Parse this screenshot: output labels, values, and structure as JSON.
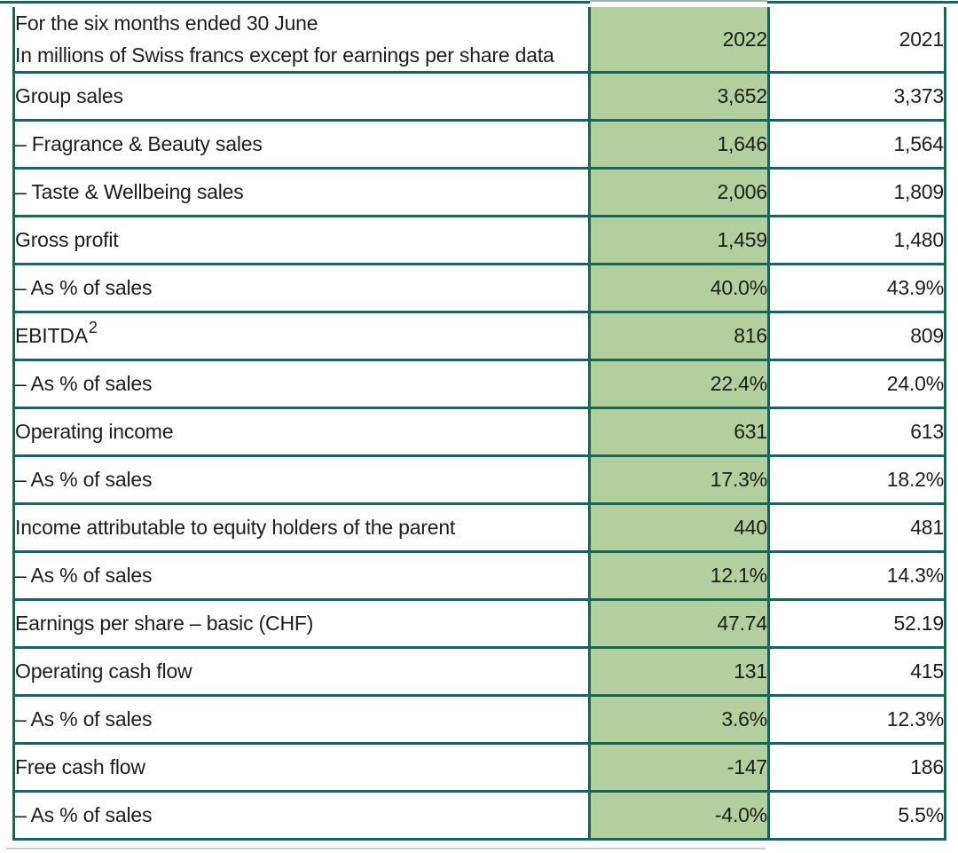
{
  "colors": {
    "grid_border": "#15675a",
    "highlight_column": "#b3cf9e",
    "text": "#1d1d1b",
    "top_rule_light": "#a4b5ad",
    "bottom_rule": "#c9cdca"
  },
  "table": {
    "header": {
      "label_line1": "For the six months ended 30 June",
      "label_line2": "In millions of Swiss francs except for earnings per share data",
      "col_2022": "2022",
      "col_2021": "2021"
    },
    "rows": [
      {
        "label": "Group sales",
        "v2022": "3,652",
        "v2021": "3,373"
      },
      {
        "label": "– Fragrance & Beauty sales",
        "v2022": "1,646",
        "v2021": "1,564"
      },
      {
        "label": "– Taste & Wellbeing sales",
        "v2022": "2,006",
        "v2021": "1,809"
      },
      {
        "label": "Gross profit",
        "v2022": "1,459",
        "v2021": "1,480"
      },
      {
        "label": "– As % of sales",
        "v2022": "40.0%",
        "v2021": "43.9%"
      },
      {
        "label": "EBITDA",
        "sup": "2",
        "v2022": "816",
        "v2021": "809"
      },
      {
        "label": "– As % of sales",
        "v2022": "22.4%",
        "v2021": "24.0%"
      },
      {
        "label": "Operating income",
        "v2022": "631",
        "v2021": "613"
      },
      {
        "label": "– As % of sales",
        "v2022": "17.3%",
        "v2021": "18.2%"
      },
      {
        "label": "Income attributable to equity holders of the parent",
        "v2022": "440",
        "v2021": "481"
      },
      {
        "label": "– As % of sales",
        "v2022": "12.1%",
        "v2021": "14.3%"
      },
      {
        "label": "Earnings per share – basic (CHF)",
        "v2022": "47.74",
        "v2021": "52.19"
      },
      {
        "label": "Operating cash flow",
        "v2022": "131",
        "v2021": "415"
      },
      {
        "label": "– As % of sales",
        "v2022": "3.6%",
        "v2021": "12.3%"
      },
      {
        "label": "Free cash flow",
        "v2022": "-147",
        "v2021": "186"
      },
      {
        "label": "– As % of sales",
        "v2022": "-4.0%",
        "v2021": "5.5%"
      }
    ]
  }
}
